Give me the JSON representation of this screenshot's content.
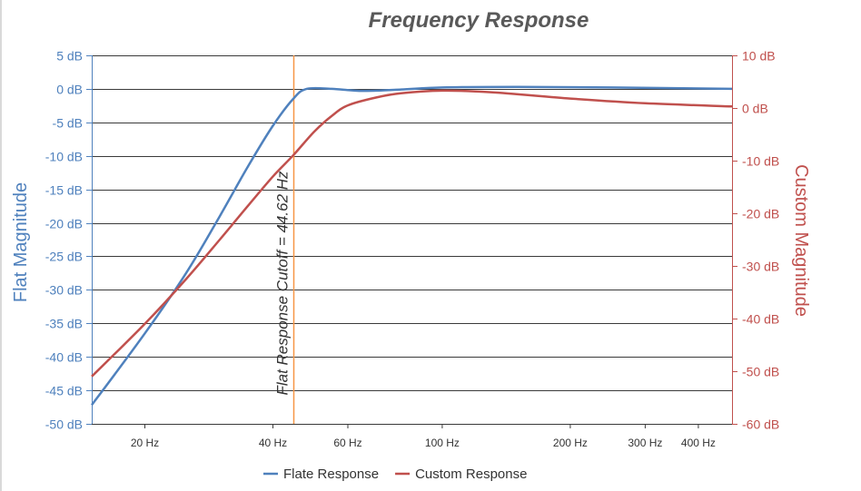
{
  "chart_data": {
    "type": "line",
    "title": "Frequency Response",
    "x_scale": "log",
    "x_range_hz": [
      15,
      480
    ],
    "x_ticks": [
      {
        "value": 20,
        "label": "20 Hz"
      },
      {
        "value": 40,
        "label": "40 Hz"
      },
      {
        "value": 60,
        "label": "60 Hz"
      },
      {
        "value": 100,
        "label": "100 Hz"
      },
      {
        "value": 200,
        "label": "200 Hz"
      },
      {
        "value": 300,
        "label": "300 Hz"
      },
      {
        "value": 400,
        "label": "400 Hz"
      }
    ],
    "y_left": {
      "label": "Flat Magnitude",
      "color": "#4f81bd",
      "range": [
        -50,
        5
      ],
      "ticks": [
        {
          "value": 5,
          "label": "5 dB"
        },
        {
          "value": 0,
          "label": "0 dB"
        },
        {
          "value": -5,
          "label": "-5 dB"
        },
        {
          "value": -10,
          "label": "-10 dB"
        },
        {
          "value": -15,
          "label": "-15 dB"
        },
        {
          "value": -20,
          "label": "-20 dB"
        },
        {
          "value": -25,
          "label": "-25 dB"
        },
        {
          "value": -30,
          "label": "-30 dB"
        },
        {
          "value": -35,
          "label": "-35 dB"
        },
        {
          "value": -40,
          "label": "-40 dB"
        },
        {
          "value": -45,
          "label": "-45 dB"
        },
        {
          "value": -50,
          "label": "-50 dB"
        }
      ]
    },
    "y_right": {
      "label": "Custom Magnitude",
      "color": "#c0504d",
      "range": [
        -60,
        10
      ],
      "ticks": [
        {
          "value": 10,
          "label": "10 dB"
        },
        {
          "value": 0,
          "label": "0 dB"
        },
        {
          "value": -10,
          "label": "-10 dB"
        },
        {
          "value": -20,
          "label": "-20 dB"
        },
        {
          "value": -30,
          "label": "-30 dB"
        },
        {
          "value": -40,
          "label": "-40 dB"
        },
        {
          "value": -50,
          "label": "-50 dB"
        },
        {
          "value": -60,
          "label": "-60 dB"
        }
      ]
    },
    "grid": true,
    "legend_position": "bottom",
    "series": [
      {
        "name": "Flate Response",
        "axis": "left",
        "color": "#4f81bd",
        "points": [
          [
            15,
            -47.2
          ],
          [
            20,
            -36.5
          ],
          [
            25,
            -27.5
          ],
          [
            30,
            -19
          ],
          [
            35,
            -11.5
          ],
          [
            40,
            -5.5
          ],
          [
            44.62,
            -1.5
          ],
          [
            48,
            0
          ],
          [
            55,
            0
          ],
          [
            65,
            -0.3
          ],
          [
            80,
            -0.1
          ],
          [
            100,
            0.2
          ],
          [
            150,
            0.3
          ],
          [
            250,
            0.2
          ],
          [
            480,
            0
          ]
        ]
      },
      {
        "name": "Custom Response",
        "axis": "right",
        "color": "#c0504d",
        "points": [
          [
            15,
            -51
          ],
          [
            20,
            -41
          ],
          [
            25,
            -32.5
          ],
          [
            30,
            -25
          ],
          [
            35,
            -18.5
          ],
          [
            40,
            -13
          ],
          [
            44.62,
            -9
          ],
          [
            50,
            -4.5
          ],
          [
            55,
            -1.5
          ],
          [
            60,
            0.5
          ],
          [
            70,
            2
          ],
          [
            80,
            2.8
          ],
          [
            100,
            3.3
          ],
          [
            130,
            3
          ],
          [
            200,
            1.8
          ],
          [
            300,
            0.9
          ],
          [
            480,
            0.3
          ]
        ]
      }
    ],
    "annotations": [
      {
        "type": "vertical-line",
        "x": 44.62,
        "color": "#f79646",
        "label": "Flat Response Cutoff = 44.62 Hz"
      }
    ]
  }
}
